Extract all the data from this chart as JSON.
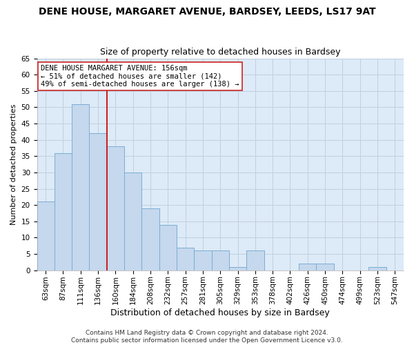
{
  "title": "DENE HOUSE, MARGARET AVENUE, BARDSEY, LEEDS, LS17 9AT",
  "subtitle": "Size of property relative to detached houses in Bardsey",
  "xlabel": "Distribution of detached houses by size in Bardsey",
  "ylabel": "Number of detached properties",
  "categories": [
    "63sqm",
    "87sqm",
    "111sqm",
    "136sqm",
    "160sqm",
    "184sqm",
    "208sqm",
    "232sqm",
    "257sqm",
    "281sqm",
    "305sqm",
    "329sqm",
    "353sqm",
    "378sqm",
    "402sqm",
    "426sqm",
    "450sqm",
    "474sqm",
    "499sqm",
    "523sqm",
    "547sqm"
  ],
  "values": [
    21,
    36,
    51,
    42,
    38,
    30,
    19,
    14,
    7,
    6,
    6,
    1,
    6,
    0,
    0,
    2,
    2,
    0,
    0,
    1,
    0
  ],
  "bar_color": "#c5d8ed",
  "bar_edge_color": "#7aadd4",
  "vline_x_index": 4,
  "vline_color": "#cc2222",
  "annotation_text": "DENE HOUSE MARGARET AVENUE: 156sqm\n← 51% of detached houses are smaller (142)\n49% of semi-detached houses are larger (138) →",
  "annotation_box_color": "#ffffff",
  "annotation_box_edge": "#cc2222",
  "ylim": [
    0,
    65
  ],
  "yticks": [
    0,
    5,
    10,
    15,
    20,
    25,
    30,
    35,
    40,
    45,
    50,
    55,
    60,
    65
  ],
  "grid_color": "#c0d0e0",
  "background_color": "#ddeaf7",
  "fig_background": "#ffffff",
  "footer": "Contains HM Land Registry data © Crown copyright and database right 2024.\nContains public sector information licensed under the Open Government Licence v3.0.",
  "title_fontsize": 10,
  "subtitle_fontsize": 9,
  "xlabel_fontsize": 9,
  "ylabel_fontsize": 8,
  "tick_fontsize": 7.5,
  "footer_fontsize": 6.5
}
